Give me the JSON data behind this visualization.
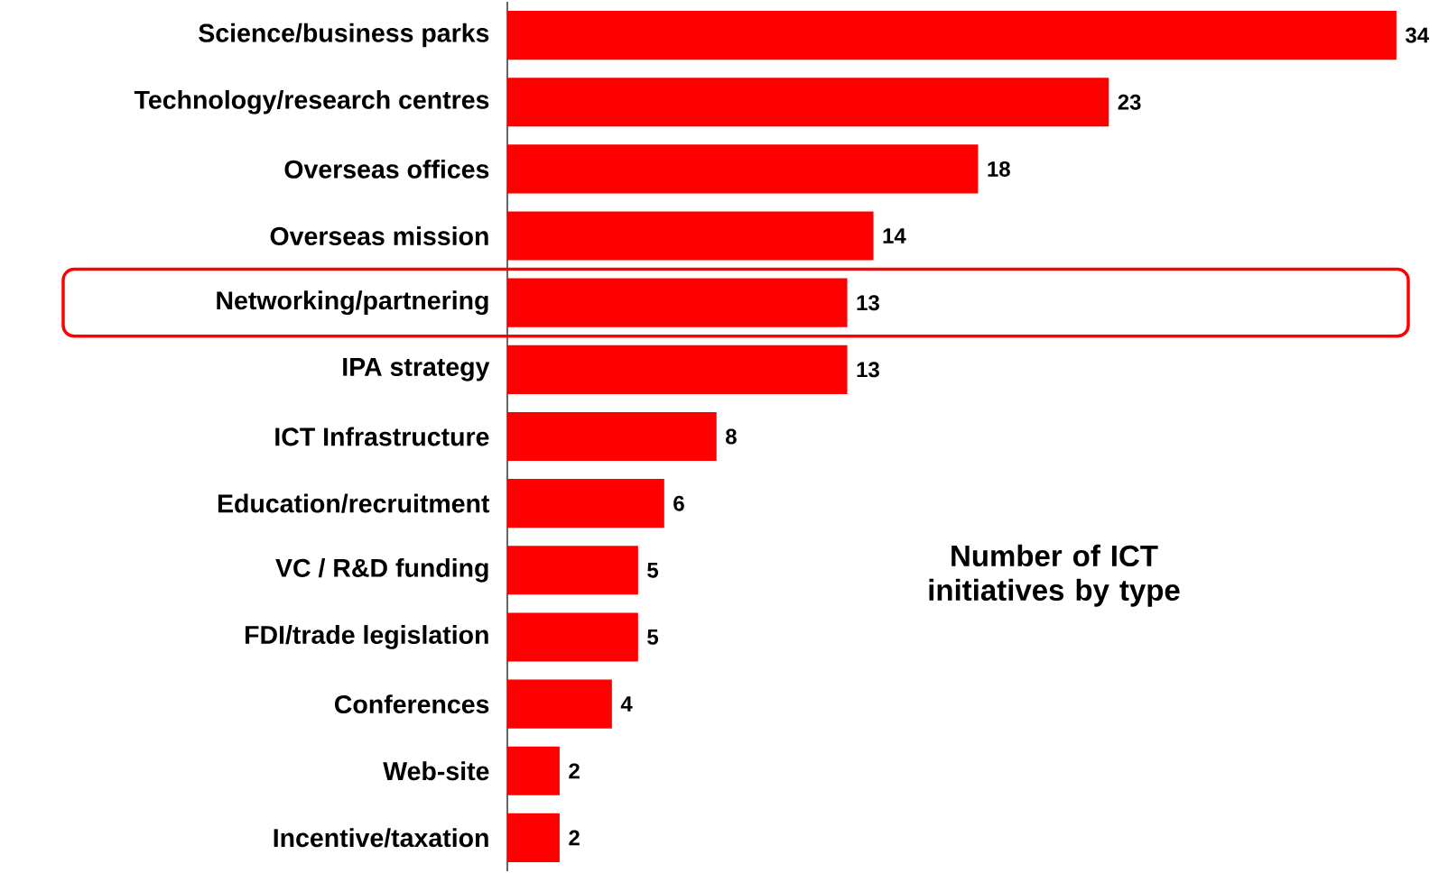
{
  "chart_data": {
    "type": "bar",
    "orientation": "horizontal",
    "title": "Number of ICT initiatives by type",
    "categories": [
      "Science/business parks",
      "Technology/research centres",
      "Overseas offices",
      "Overseas mission",
      "Networking/partnering",
      "IPA strategy",
      "ICT Infrastructure",
      "Education/recruitment",
      "VC / R&D funding",
      "FDI/trade legislation",
      "Conferences",
      "Web-site",
      "Incentive/taxation"
    ],
    "values": [
      34,
      23,
      18,
      14,
      13,
      13,
      8,
      6,
      5,
      5,
      4,
      2,
      2
    ],
    "color": "#ff0000",
    "data_labels": true
  }
}
